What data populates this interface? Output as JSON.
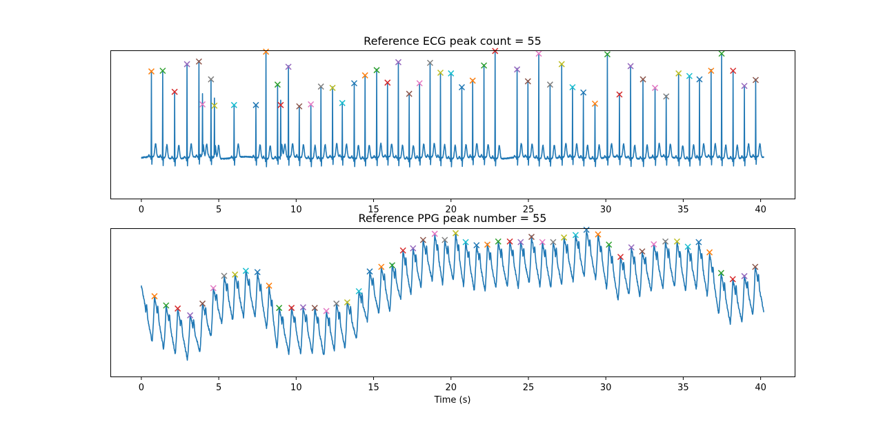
{
  "chart_data": [
    {
      "type": "line",
      "title": "Reference ECG peak count = 55",
      "xlabel": "",
      "ylabel": "",
      "xlim": [
        -2,
        42.2
      ],
      "ylim": [
        -0.7,
        1.55
      ],
      "xticks": [
        0,
        5,
        10,
        15,
        20,
        25,
        30,
        35,
        40
      ],
      "xtick_labels": [
        "0",
        "5",
        "10",
        "15",
        "20",
        "25",
        "30",
        "35",
        "40"
      ],
      "show_xtick_labels": true,
      "yticks_visible": false,
      "grid": false,
      "signal_range": [
        0,
        40.2
      ],
      "marker": "x",
      "marker_colors": [
        "#ff7f0e",
        "#2ca02c",
        "#d62728",
        "#9467bd",
        "#8c564b",
        "#e377c2",
        "#7f7f7f",
        "#bcbd22",
        "#17becf",
        "#1f77b4"
      ],
      "line_color": "#1f77b4",
      "peaks": {
        "x": [
          0.65,
          1.38,
          2.15,
          2.95,
          3.72,
          3.95,
          4.5,
          4.72,
          5.99,
          7.4,
          8.05,
          8.8,
          9.0,
          9.5,
          10.2,
          10.95,
          11.6,
          12.35,
          12.98,
          13.75,
          14.45,
          15.2,
          15.9,
          16.6,
          17.3,
          17.97,
          18.65,
          19.32,
          20.0,
          20.7,
          21.4,
          22.13,
          22.85,
          24.27,
          24.97,
          25.67,
          26.4,
          27.15,
          27.85,
          28.55,
          29.3,
          30.1,
          30.88,
          31.6,
          32.4,
          33.18,
          33.9,
          34.7,
          35.4,
          36.05,
          36.8,
          37.48,
          38.22,
          38.95,
          39.68
        ],
        "y": [
          1.23,
          1.24,
          0.92,
          1.34,
          1.38,
          0.73,
          1.11,
          0.71,
          0.72,
          0.72,
          1.53,
          1.03,
          0.72,
          1.3,
          0.7,
          0.73,
          1.0,
          0.98,
          0.75,
          1.05,
          1.17,
          1.25,
          1.06,
          1.37,
          0.89,
          1.05,
          1.36,
          1.21,
          1.2,
          0.99,
          1.09,
          1.32,
          1.54,
          1.26,
          1.08,
          1.5,
          1.03,
          1.34,
          0.99,
          0.91,
          0.74,
          1.49,
          0.88,
          1.31,
          1.11,
          0.98,
          0.85,
          1.2,
          1.16,
          1.11,
          1.24,
          1.5,
          1.24,
          1.01,
          1.1
        ]
      }
    },
    {
      "type": "line",
      "title": "Reference PPG peak number = 55",
      "xlabel": "Time (s)",
      "ylabel": "",
      "xlim": [
        -2,
        42.2
      ],
      "ylim": [
        -2.2,
        2.6
      ],
      "xticks": [
        0,
        5,
        10,
        15,
        20,
        25,
        30,
        35,
        40
      ],
      "xtick_labels": [
        "0",
        "5",
        "10",
        "15",
        "20",
        "25",
        "30",
        "35",
        "40"
      ],
      "show_xtick_labels": true,
      "yticks_visible": false,
      "grid": false,
      "signal_range": [
        0,
        40.2
      ],
      "marker": "x",
      "marker_colors": [
        "#ff7f0e",
        "#2ca02c",
        "#d62728",
        "#9467bd",
        "#8c564b",
        "#e377c2",
        "#7f7f7f",
        "#bcbd22",
        "#17becf",
        "#1f77b4"
      ],
      "line_color": "#1f77b4",
      "peaks": {
        "x": [
          0.85,
          1.6,
          2.35,
          3.15,
          3.95,
          4.65,
          5.35,
          6.05,
          6.75,
          7.5,
          8.25,
          8.9,
          9.7,
          10.45,
          11.2,
          11.95,
          12.6,
          13.3,
          14.05,
          14.75,
          15.5,
          16.2,
          16.9,
          17.55,
          18.2,
          18.95,
          19.6,
          20.3,
          20.95,
          21.65,
          22.35,
          23.05,
          23.8,
          24.5,
          25.2,
          25.9,
          26.6,
          27.3,
          28.05,
          28.75,
          29.5,
          30.2,
          30.95,
          31.65,
          32.35,
          33.1,
          33.85,
          34.6,
          35.3,
          36.0,
          36.7,
          37.45,
          38.2,
          38.95,
          39.65
        ],
        "y": [
          0.4,
          0.1,
          0.0,
          -0.22,
          0.16,
          0.66,
          1.06,
          1.1,
          1.22,
          1.18,
          0.74,
          0.02,
          0.02,
          0.04,
          0.02,
          -0.08,
          0.16,
          0.2,
          0.56,
          1.2,
          1.35,
          1.4,
          1.88,
          1.95,
          2.22,
          2.42,
          2.22,
          2.44,
          2.15,
          2.05,
          2.07,
          2.17,
          2.17,
          2.15,
          2.32,
          2.15,
          2.15,
          2.3,
          2.38,
          2.55,
          2.4,
          2.07,
          1.67,
          1.98,
          1.85,
          2.08,
          2.17,
          2.17,
          2.0,
          2.15,
          1.82,
          1.15,
          0.95,
          1.05,
          1.35
        ]
      }
    }
  ]
}
